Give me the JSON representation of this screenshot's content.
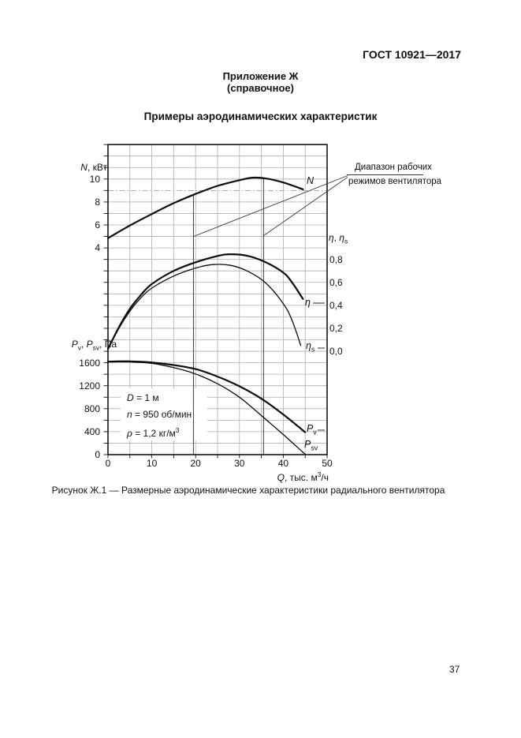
{
  "page": {
    "header": "ГОСТ 10921—2017",
    "annex_title": "Приложение Ж",
    "annex_subtitle": "(справочное)",
    "section_title": "Примеры аэродинамических характеристик",
    "caption": "Рисунок Ж.1 — Размерные аэродинамические характеристики радиального вентилятора",
    "page_number": "37"
  },
  "annotation": {
    "line1": "Диапазон рабочих",
    "line2": "режимов вентилятора"
  },
  "params": {
    "line1_segs": [
      [
        "i",
        "D"
      ],
      [
        "n",
        " = 1 м"
      ]
    ],
    "line2_segs": [
      [
        "i",
        "n"
      ],
      [
        "n",
        " = 950 об/мин"
      ]
    ],
    "line3_segs": [
      [
        "i",
        "ρ"
      ],
      [
        "n",
        " = 1,2 кг/м"
      ],
      [
        "sup",
        "3"
      ]
    ]
  },
  "chart_data": {
    "type": "line",
    "title": "Размерные аэродинамические характеристики радиального вентилятора",
    "grid": "on",
    "x_axis": {
      "label_segs": [
        [
          "i",
          "Q"
        ],
        [
          "n",
          ", тыс. м"
        ],
        [
          "sup",
          "3"
        ],
        [
          "n",
          "/ч"
        ]
      ],
      "ticks": [
        0,
        10,
        20,
        30,
        40,
        50
      ],
      "range": [
        0,
        50
      ]
    },
    "axes": {
      "n": {
        "title_segs": [
          [
            "i",
            "N"
          ],
          [
            "n",
            ", кВт"
          ]
        ],
        "ticks": [
          10,
          8,
          6,
          4
        ],
        "range_shown": [
          4,
          12
        ]
      },
      "eta": {
        "title_segs": [
          [
            "i",
            "η"
          ],
          [
            "n",
            ", "
          ],
          [
            "i",
            "η"
          ],
          [
            "sub",
            "s"
          ]
        ],
        "ticks": [
          {
            "v": 0.8,
            "label": "0,8"
          },
          {
            "v": 0.6,
            "label": "0,6"
          },
          {
            "v": 0.4,
            "label": "0,4"
          },
          {
            "v": 0.2,
            "label": "0,2"
          },
          {
            "v": 0.0,
            "label": "0,0"
          }
        ],
        "range_shown": [
          0,
          1
        ]
      },
      "p": {
        "title_segs": [
          [
            "i",
            "P"
          ],
          [
            "sub",
            "v"
          ],
          [
            "n",
            ", "
          ],
          [
            "i",
            "P"
          ],
          [
            "sub",
            "sv"
          ],
          [
            "n",
            ", Па"
          ]
        ],
        "ticks": [
          1600,
          1200,
          800,
          400,
          0
        ],
        "range_shown": [
          0,
          1600
        ]
      }
    },
    "series": [
      {
        "id": "N",
        "axis": "n",
        "label_segs": [
          [
            "i",
            "N"
          ]
        ],
        "weight": "thick",
        "points": [
          [
            0,
            4.85
          ],
          [
            5,
            5.95
          ],
          [
            10,
            6.95
          ],
          [
            15,
            7.9
          ],
          [
            20,
            8.7
          ],
          [
            25,
            9.4
          ],
          [
            30,
            9.9
          ],
          [
            33,
            10.12
          ],
          [
            36,
            10.05
          ],
          [
            40,
            9.7
          ],
          [
            44.5,
            9.1
          ]
        ]
      },
      {
        "id": "eta",
        "axis": "eta",
        "label_segs": [
          [
            "i",
            "η"
          ]
        ],
        "weight": "thick",
        "points": [
          [
            0,
            0.02
          ],
          [
            2.5,
            0.21
          ],
          [
            5,
            0.37
          ],
          [
            7.5,
            0.49
          ],
          [
            10,
            0.585
          ],
          [
            15,
            0.7
          ],
          [
            20,
            0.775
          ],
          [
            25,
            0.83
          ],
          [
            28,
            0.845
          ],
          [
            32,
            0.83
          ],
          [
            36,
            0.775
          ],
          [
            40,
            0.685
          ],
          [
            42,
            0.6
          ],
          [
            44.5,
            0.455
          ]
        ]
      },
      {
        "id": "eta_s",
        "axis": "eta",
        "label_segs": [
          [
            "i",
            "η"
          ],
          [
            "sub",
            "s"
          ]
        ],
        "weight": "thin",
        "points": [
          [
            0,
            0.02
          ],
          [
            2.5,
            0.2
          ],
          [
            5,
            0.35
          ],
          [
            7.5,
            0.465
          ],
          [
            10,
            0.55
          ],
          [
            15,
            0.655
          ],
          [
            20,
            0.725
          ],
          [
            24,
            0.755
          ],
          [
            28,
            0.748
          ],
          [
            32,
            0.695
          ],
          [
            36,
            0.595
          ],
          [
            40,
            0.415
          ],
          [
            42,
            0.27
          ],
          [
            44,
            0.05
          ]
        ]
      },
      {
        "id": "P_v",
        "axis": "p",
        "label_segs": [
          [
            "i",
            "P"
          ],
          [
            "sub",
            "v"
          ]
        ],
        "weight": "thick",
        "points": [
          [
            0,
            1620
          ],
          [
            5,
            1625
          ],
          [
            10,
            1605
          ],
          [
            15,
            1560
          ],
          [
            20,
            1490
          ],
          [
            25,
            1360
          ],
          [
            30,
            1190
          ],
          [
            35,
            975
          ],
          [
            40,
            700
          ],
          [
            45,
            390
          ]
        ]
      },
      {
        "id": "P_sv",
        "axis": "p",
        "label_segs": [
          [
            "i",
            "P"
          ],
          [
            "sub",
            "sv"
          ]
        ],
        "weight": "thin",
        "points": [
          [
            0,
            1620
          ],
          [
            5,
            1615
          ],
          [
            10,
            1590
          ],
          [
            15,
            1515
          ],
          [
            20,
            1405
          ],
          [
            25,
            1235
          ],
          [
            30,
            1000
          ],
          [
            35,
            680
          ],
          [
            40,
            350
          ],
          [
            45,
            5
          ]
        ]
      }
    ],
    "working_range": {
      "q_from": 19.5,
      "q_to": 35.5
    },
    "dashed_gridline_kw": 9
  }
}
